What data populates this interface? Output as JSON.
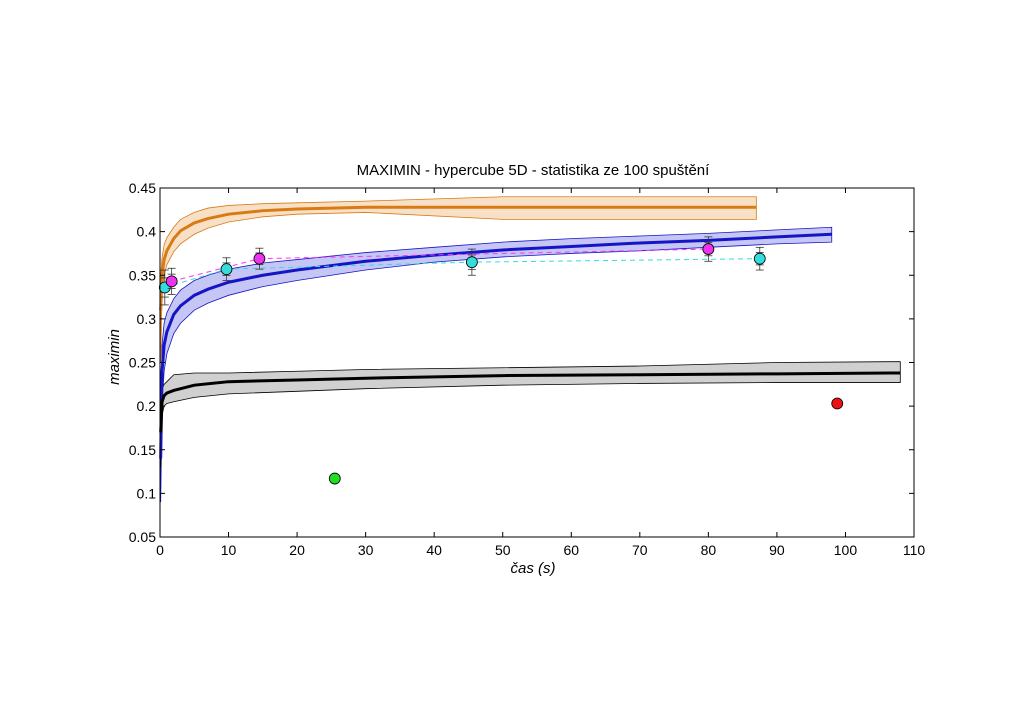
{
  "chart_data": {
    "type": "line",
    "title": "MAXIMIN - hypercube 5D - statistika ze 100 spuštění",
    "xlabel": "čas (s)",
    "ylabel": "maximin",
    "xlim": [
      0,
      110
    ],
    "ylim": [
      0.05,
      0.45
    ],
    "xticks": [
      0,
      10,
      20,
      30,
      40,
      50,
      60,
      70,
      80,
      90,
      100,
      110
    ],
    "yticks": [
      0.05,
      0.1,
      0.15,
      0.2,
      0.25,
      0.3,
      0.35,
      0.4,
      0.45
    ],
    "grid": false,
    "series": [
      {
        "color": "#d97a14",
        "band_color": "#f5d6b3",
        "x": [
          0.1,
          0.3,
          0.6,
          1,
          2,
          3,
          5,
          7,
          10,
          15,
          20,
          30,
          50,
          70,
          87
        ],
        "y": [
          0.31,
          0.35,
          0.368,
          0.378,
          0.392,
          0.401,
          0.41,
          0.415,
          0.42,
          0.424,
          0.426,
          0.428,
          0.428,
          0.428,
          0.428
        ],
        "lower": [
          0.25,
          0.33,
          0.35,
          0.362,
          0.377,
          0.386,
          0.397,
          0.404,
          0.411,
          0.417,
          0.42,
          0.422,
          0.414,
          0.414,
          0.414
        ],
        "upper": [
          0.35,
          0.37,
          0.385,
          0.393,
          0.405,
          0.414,
          0.422,
          0.427,
          0.43,
          0.432,
          0.433,
          0.435,
          0.44,
          0.44,
          0.44
        ]
      },
      {
        "color": "#1515c8",
        "band_color": "#b3b3f0",
        "x": [
          0.1,
          0.3,
          0.6,
          1,
          2,
          3,
          5,
          7,
          10,
          15,
          20,
          30,
          40,
          50,
          60,
          70,
          80,
          90,
          98
        ],
        "y": [
          0.14,
          0.24,
          0.27,
          0.285,
          0.305,
          0.315,
          0.327,
          0.334,
          0.342,
          0.35,
          0.356,
          0.366,
          0.373,
          0.379,
          0.383,
          0.387,
          0.39,
          0.394,
          0.397
        ],
        "lower": [
          0.09,
          0.2,
          0.24,
          0.26,
          0.283,
          0.295,
          0.31,
          0.318,
          0.327,
          0.337,
          0.344,
          0.356,
          0.365,
          0.371,
          0.375,
          0.378,
          0.382,
          0.386,
          0.388
        ],
        "upper": [
          0.17,
          0.27,
          0.295,
          0.307,
          0.323,
          0.333,
          0.344,
          0.35,
          0.357,
          0.364,
          0.368,
          0.376,
          0.382,
          0.388,
          0.392,
          0.395,
          0.398,
          0.402,
          0.405
        ]
      },
      {
        "color": "#000000",
        "band_color": "#c0c0c0",
        "x": [
          0.1,
          0.3,
          0.6,
          1,
          2,
          5,
          10,
          20,
          30,
          50,
          70,
          90,
          108
        ],
        "y": [
          0.17,
          0.205,
          0.212,
          0.215,
          0.218,
          0.224,
          0.228,
          0.23,
          0.232,
          0.235,
          0.236,
          0.237,
          0.238
        ],
        "lower": [
          0.13,
          0.19,
          0.2,
          0.203,
          0.205,
          0.21,
          0.214,
          0.217,
          0.22,
          0.224,
          0.226,
          0.227,
          0.227
        ],
        "upper": [
          0.2,
          0.22,
          0.225,
          0.228,
          0.236,
          0.238,
          0.238,
          0.24,
          0.242,
          0.244,
          0.246,
          0.25,
          0.251
        ]
      }
    ],
    "dashed_series": [
      {
        "color": "#ff33ff",
        "x": [
          1.7,
          14.5,
          80
        ],
        "y": [
          0.343,
          0.369,
          0.38
        ]
      },
      {
        "color": "#33dddd",
        "x": [
          0.7,
          9.7,
          45.5,
          87.5
        ],
        "y": [
          0.336,
          0.357,
          0.365,
          0.369
        ]
      }
    ],
    "markers": [
      {
        "color": "#22dd22",
        "x": 25.5,
        "y": 0.117
      },
      {
        "color": "#ee1111",
        "x": 98.8,
        "y": 0.203
      },
      {
        "color": "#33dddd",
        "x": 0.7,
        "y": 0.336,
        "err": 0.02
      },
      {
        "color": "#33dddd",
        "x": 9.7,
        "y": 0.357,
        "err": 0.013
      },
      {
        "color": "#33dddd",
        "x": 45.5,
        "y": 0.365,
        "err": 0.015
      },
      {
        "color": "#33dddd",
        "x": 87.5,
        "y": 0.369,
        "err": 0.013
      },
      {
        "color": "#ee33ee",
        "x": 1.7,
        "y": 0.343,
        "err": 0.015
      },
      {
        "color": "#ee33ee",
        "x": 14.5,
        "y": 0.369,
        "err": 0.012
      },
      {
        "color": "#ee33ee",
        "x": 80,
        "y": 0.38,
        "err": 0.014
      }
    ]
  }
}
